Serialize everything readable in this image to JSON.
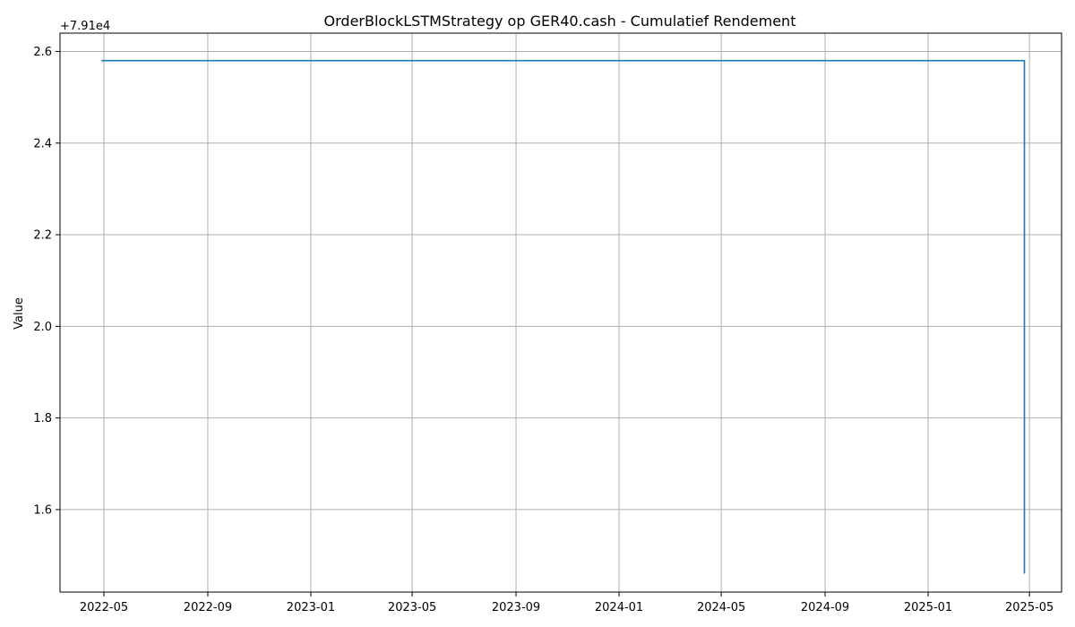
{
  "chart_data": {
    "type": "line",
    "title": "OrderBlockLSTMStrategy op GER40.cash - Cumulatief Rendement",
    "xlabel": "",
    "ylabel": "Value",
    "offset_label": "+7.91e4",
    "offset": 79100,
    "grid": true,
    "colors": {
      "line": "#1f77b4",
      "grid": "#b0b0b0"
    },
    "x_ticks": [
      "2022-05",
      "2022-09",
      "2023-01",
      "2023-05",
      "2023-09",
      "2024-01",
      "2024-05",
      "2024-09",
      "2025-01",
      "2025-05"
    ],
    "y_ticks": [
      "1.6",
      "1.8",
      "2.0",
      "2.2",
      "2.4",
      "2.6"
    ],
    "xlim": [
      "2022-03-10",
      "2025-06-08"
    ],
    "ylim": [
      79101.42,
      79102.64
    ],
    "series": [
      {
        "x": [
          "2022-04-28",
          "2025-04-25",
          "2025-04-25"
        ],
        "y": [
          79102.58,
          79102.58,
          79101.46
        ]
      }
    ]
  }
}
